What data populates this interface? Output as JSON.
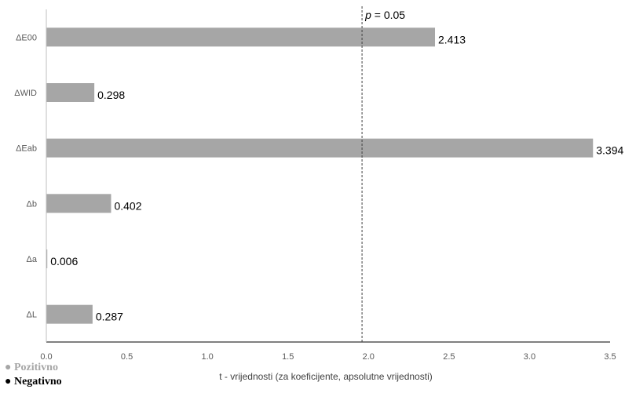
{
  "chart_data": {
    "type": "bar",
    "orientation": "horizontal",
    "categories": [
      "ΔE00",
      "ΔWID",
      "ΔEab",
      "Δb",
      "Δa",
      "ΔL"
    ],
    "values": [
      2.413,
      0.298,
      3.394,
      0.402,
      0.006,
      0.287
    ],
    "data_labels": [
      "2.413",
      "0.298",
      "3.394",
      "0.402",
      "0.006",
      "0.287"
    ],
    "xlabel": "t - vrijednosti (za koeficijente, apsolutne vrijednosti)",
    "xlim": [
      0,
      3.5
    ],
    "xticks": [
      "0.0",
      "0.5",
      "1.0",
      "1.5",
      "2.0",
      "2.5",
      "3.0",
      "3.5"
    ],
    "reference_line": {
      "value": 1.96,
      "label_italic": "p",
      "label_rest": " = 0.05",
      "style": "dashed"
    },
    "grid": false,
    "bar_color": "#a6a6a6",
    "legend": [
      {
        "label": "Pozitivno",
        "color": "#a6a6a6"
      },
      {
        "label": "Negativno",
        "color": "#000000"
      }
    ],
    "legend_placement": "bottom-left"
  }
}
